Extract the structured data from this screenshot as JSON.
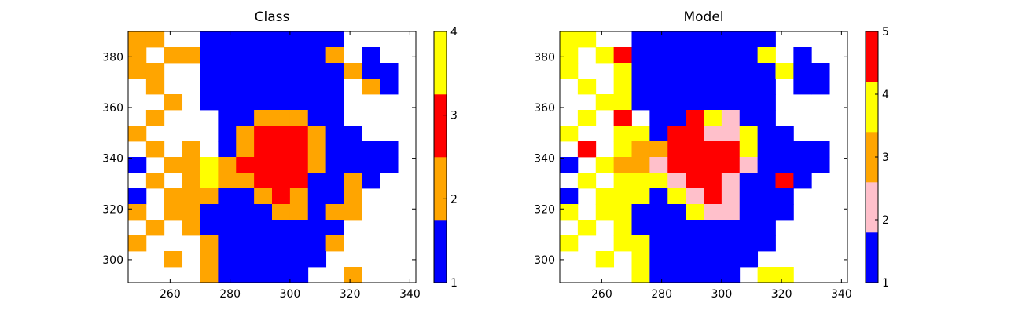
{
  "chart_data": [
    {
      "type": "heatmap",
      "title": "Class",
      "xlim": [
        246,
        342
      ],
      "ylim": [
        291,
        390
      ],
      "xticks": [
        260,
        280,
        300,
        320,
        340
      ],
      "yticks": [
        300,
        320,
        340,
        360,
        380
      ],
      "clim": [
        1,
        4
      ],
      "cticks": [
        1,
        2,
        3,
        4
      ],
      "colors": [
        "#0000ff",
        "#ffa500",
        "#ff0000",
        "#ffff00"
      ],
      "z": [
        [
          2,
          2,
          null,
          null,
          1,
          1,
          1,
          1,
          1,
          1,
          1,
          1,
          null,
          null,
          null,
          null
        ],
        [
          2,
          null,
          2,
          2,
          1,
          1,
          1,
          1,
          1,
          1,
          1,
          2,
          null,
          1,
          null,
          null
        ],
        [
          2,
          2,
          null,
          null,
          1,
          1,
          1,
          1,
          1,
          1,
          1,
          1,
          2,
          1,
          1,
          null
        ],
        [
          null,
          2,
          null,
          null,
          1,
          1,
          1,
          1,
          1,
          1,
          1,
          1,
          null,
          2,
          1,
          null
        ],
        [
          null,
          null,
          2,
          null,
          1,
          1,
          1,
          1,
          1,
          1,
          1,
          1,
          null,
          null,
          null,
          null
        ],
        [
          null,
          2,
          null,
          null,
          null,
          1,
          1,
          2,
          2,
          2,
          1,
          1,
          null,
          null,
          null,
          null
        ],
        [
          2,
          null,
          null,
          null,
          null,
          1,
          2,
          3,
          3,
          3,
          2,
          1,
          1,
          null,
          null,
          null
        ],
        [
          null,
          2,
          null,
          2,
          null,
          1,
          2,
          3,
          3,
          3,
          2,
          1,
          1,
          1,
          1,
          null
        ],
        [
          1,
          null,
          2,
          2,
          4,
          2,
          3,
          3,
          3,
          3,
          2,
          1,
          1,
          1,
          1,
          null
        ],
        [
          null,
          2,
          null,
          2,
          4,
          2,
          2,
          3,
          3,
          3,
          1,
          1,
          2,
          1,
          null,
          null
        ],
        [
          1,
          null,
          2,
          2,
          2,
          1,
          1,
          2,
          3,
          2,
          1,
          1,
          2,
          null,
          null,
          null
        ],
        [
          2,
          null,
          2,
          2,
          1,
          1,
          1,
          1,
          2,
          2,
          1,
          2,
          2,
          null,
          null,
          null
        ],
        [
          null,
          2,
          null,
          2,
          1,
          1,
          1,
          1,
          1,
          1,
          1,
          1,
          null,
          null,
          null,
          null
        ],
        [
          2,
          null,
          null,
          null,
          2,
          1,
          1,
          1,
          1,
          1,
          1,
          2,
          null,
          null,
          null,
          null
        ],
        [
          null,
          null,
          2,
          null,
          2,
          1,
          1,
          1,
          1,
          1,
          1,
          null,
          null,
          null,
          null,
          null
        ],
        [
          null,
          null,
          null,
          null,
          2,
          1,
          1,
          1,
          1,
          1,
          null,
          null,
          2,
          null,
          null,
          null
        ]
      ]
    },
    {
      "type": "heatmap",
      "title": "Model",
      "xlim": [
        246,
        342
      ],
      "ylim": [
        291,
        390
      ],
      "xticks": [
        260,
        280,
        300,
        320,
        340
      ],
      "yticks": [
        300,
        320,
        340,
        360,
        380
      ],
      "clim": [
        1,
        5
      ],
      "cticks": [
        1,
        2,
        3,
        4,
        5
      ],
      "colors": [
        "#0000ff",
        "#ffc0cb",
        "#ffa500",
        "#ffff00",
        "#ff0000"
      ],
      "z": [
        [
          4,
          4,
          null,
          null,
          1,
          1,
          1,
          1,
          1,
          1,
          1,
          1,
          null,
          null,
          null,
          null
        ],
        [
          4,
          null,
          4,
          5,
          1,
          1,
          1,
          1,
          1,
          1,
          1,
          4,
          null,
          1,
          null,
          null
        ],
        [
          4,
          null,
          null,
          4,
          1,
          1,
          1,
          1,
          1,
          1,
          1,
          1,
          4,
          1,
          1,
          null
        ],
        [
          null,
          4,
          null,
          4,
          1,
          1,
          1,
          1,
          1,
          1,
          1,
          1,
          null,
          1,
          1,
          null
        ],
        [
          null,
          null,
          4,
          4,
          1,
          1,
          1,
          1,
          1,
          1,
          1,
          1,
          null,
          null,
          null,
          null
        ],
        [
          null,
          4,
          null,
          5,
          null,
          1,
          1,
          5,
          4,
          2,
          1,
          1,
          null,
          null,
          null,
          null
        ],
        [
          4,
          null,
          null,
          4,
          4,
          1,
          5,
          5,
          2,
          2,
          4,
          1,
          1,
          null,
          null,
          null
        ],
        [
          null,
          5,
          null,
          4,
          3,
          3,
          5,
          5,
          5,
          5,
          4,
          1,
          1,
          1,
          1,
          null
        ],
        [
          1,
          null,
          4,
          3,
          3,
          2,
          5,
          5,
          5,
          5,
          2,
          1,
          1,
          1,
          1,
          null
        ],
        [
          null,
          4,
          null,
          4,
          4,
          4,
          2,
          5,
          5,
          2,
          1,
          1,
          5,
          1,
          null,
          null
        ],
        [
          1,
          null,
          4,
          4,
          4,
          1,
          4,
          2,
          5,
          2,
          1,
          1,
          1,
          null,
          null,
          null
        ],
        [
          4,
          null,
          4,
          4,
          1,
          1,
          1,
          4,
          2,
          2,
          1,
          1,
          1,
          null,
          null,
          null
        ],
        [
          null,
          4,
          null,
          4,
          1,
          1,
          1,
          1,
          1,
          1,
          1,
          1,
          null,
          null,
          null,
          null
        ],
        [
          4,
          null,
          null,
          4,
          4,
          1,
          1,
          1,
          1,
          1,
          1,
          1,
          null,
          null,
          null,
          null
        ],
        [
          null,
          null,
          4,
          null,
          4,
          1,
          1,
          1,
          1,
          1,
          1,
          null,
          null,
          null,
          null,
          null
        ],
        [
          null,
          null,
          null,
          null,
          4,
          1,
          1,
          1,
          1,
          1,
          null,
          4,
          4,
          null,
          null,
          null
        ]
      ]
    }
  ]
}
